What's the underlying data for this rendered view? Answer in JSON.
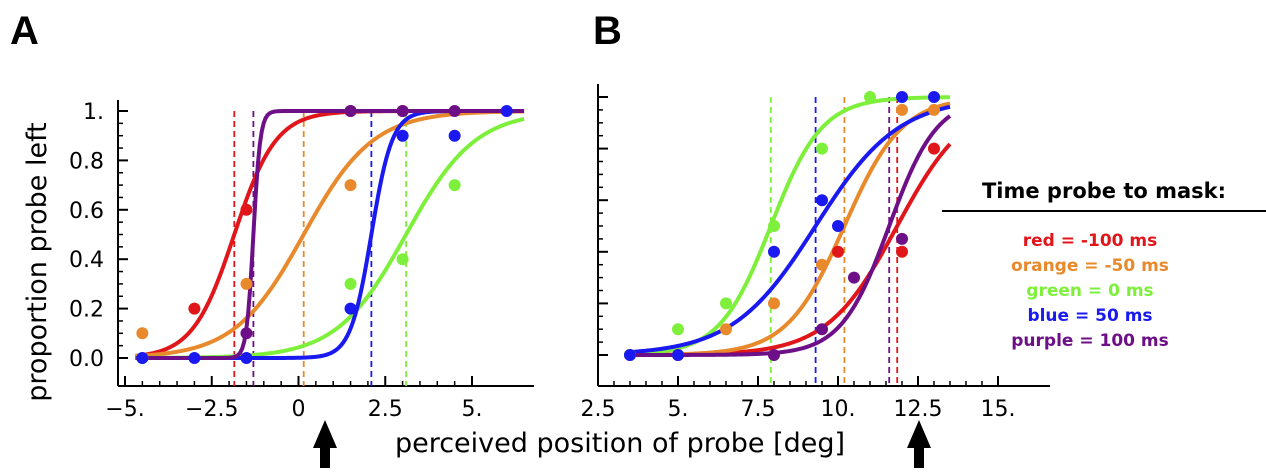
{
  "x_axis_label": "perceived position of probe [deg]",
  "legend": {
    "title": "Time probe to mask:",
    "entries": [
      {
        "text": "red = -100 ms",
        "color": "#e0161a"
      },
      {
        "text": "orange = -50 ms",
        "color": "#e8892b"
      },
      {
        "text": "green = 0 ms",
        "color": "#7ef03c"
      },
      {
        "text": "blue = 50 ms",
        "color": "#1a1af0"
      },
      {
        "text": "purple = 100 ms",
        "color": "#6d0f86"
      }
    ]
  },
  "chart_data": [
    {
      "panel": "A",
      "type": "scatter",
      "ylabel": "proportion probe left",
      "xlim": [
        -5.2,
        6.5
      ],
      "ylim": [
        -0.05,
        1.05
      ],
      "xticks": [
        -5.0,
        -2.5,
        0.0,
        2.5,
        5.0
      ],
      "xtick_labels": [
        "−5.",
        "−2.5",
        "0",
        "2.5",
        "5."
      ],
      "yticks": [
        0.0,
        0.2,
        0.4,
        0.6,
        0.8,
        1.0
      ],
      "ytick_labels": [
        "0.0",
        "0.2",
        "0.4",
        "0.6",
        "0.8",
        "1."
      ],
      "series": [
        {
          "name": "red = -100 ms",
          "color": "#e0161a",
          "points": [
            [
              -3.0,
              0.2
            ],
            [
              -1.5,
              0.6
            ],
            [
              1.5,
              1.0
            ],
            [
              3.0,
              1.0
            ]
          ],
          "fit": {
            "mu": -1.85,
            "s": 0.6,
            "lo": 0.0,
            "hi": 1.0,
            "x_from": -4.7,
            "x_to": 6.5
          },
          "threshold": -1.85
        },
        {
          "name": "orange = -50 ms",
          "color": "#e8892b",
          "points": [
            [
              -4.5,
              0.1
            ],
            [
              -1.5,
              0.3
            ],
            [
              1.5,
              0.7
            ],
            [
              3.0,
              0.9
            ]
          ],
          "fit": {
            "mu": 0.15,
            "s": 1.0,
            "lo": 0.0,
            "hi": 1.0,
            "x_from": -4.7,
            "x_to": 6.5
          },
          "threshold": 0.15
        },
        {
          "name": "green = 0 ms",
          "color": "#7ef03c",
          "points": [
            [
              -4.5,
              0.0
            ],
            [
              1.5,
              0.3
            ],
            [
              3.0,
              0.4
            ],
            [
              4.5,
              0.7
            ]
          ],
          "fit": {
            "mu": 3.1,
            "s": 1.0,
            "lo": 0.0,
            "hi": 1.0,
            "x_from": -4.7,
            "x_to": 6.5
          },
          "threshold": 3.1
        },
        {
          "name": "blue = 50 ms",
          "color": "#1a1af0",
          "points": [
            [
              -4.5,
              0.0
            ],
            [
              -3.0,
              0.0
            ],
            [
              -1.5,
              0.0
            ],
            [
              1.5,
              0.2
            ],
            [
              3.0,
              0.9
            ],
            [
              4.5,
              0.9
            ],
            [
              6.0,
              1.0
            ]
          ],
          "fit": {
            "mu": 2.1,
            "s": 0.3,
            "lo": 0.0,
            "hi": 1.0,
            "x_from": -4.7,
            "x_to": 6.5
          },
          "threshold": 2.1
        },
        {
          "name": "purple = 100 ms",
          "color": "#6d0f86",
          "points": [
            [
              -1.5,
              0.1
            ],
            [
              1.5,
              1.0
            ],
            [
              3.0,
              1.0
            ],
            [
              4.5,
              1.0
            ]
          ],
          "fit": {
            "mu": -1.3,
            "s": 0.1,
            "lo": 0.0,
            "hi": 1.0,
            "x_from": -4.7,
            "x_to": 6.5
          },
          "threshold": -1.3
        }
      ]
    },
    {
      "panel": "B",
      "type": "scatter",
      "ylabel": "",
      "xlim": [
        2.5,
        17.5
      ],
      "ylim": [
        -0.05,
        1.05
      ],
      "xticks": [
        2.5,
        5.0,
        7.5,
        10.0,
        12.5,
        15.0
      ],
      "xtick_labels": [
        "2.5",
        "5.",
        "7.5",
        "10.",
        "12.5",
        "15."
      ],
      "yticks": [
        0.0,
        0.2,
        0.4,
        0.6,
        0.8,
        1.0
      ],
      "ytick_labels": [],
      "series": [
        {
          "name": "red = -100 ms",
          "color": "#e0161a",
          "points": [
            [
              3.5,
              0.0
            ],
            [
              5.0,
              0.0
            ],
            [
              10.0,
              0.4
            ],
            [
              12.0,
              0.4
            ],
            [
              13.0,
              0.8
            ]
          ],
          "fit": {
            "mu": 11.85,
            "s": 1.1,
            "lo": 0.0,
            "hi": 1.0,
            "x_from": 3.5,
            "x_to": 13.5
          },
          "threshold": 11.85
        },
        {
          "name": "orange = -50 ms",
          "color": "#e8892b",
          "points": [
            [
              3.5,
              0.0
            ],
            [
              5.0,
              0.0
            ],
            [
              6.5,
              0.1
            ],
            [
              8.0,
              0.2
            ],
            [
              9.5,
              0.35
            ],
            [
              12.0,
              0.95
            ],
            [
              13.0,
              0.95
            ]
          ],
          "fit": {
            "mu": 10.2,
            "s": 0.9,
            "lo": 0.0,
            "hi": 1.0,
            "x_from": 3.5,
            "x_to": 13.5
          },
          "threshold": 10.2
        },
        {
          "name": "green = 0 ms",
          "color": "#7ef03c",
          "points": [
            [
              3.5,
              0.0
            ],
            [
              5.0,
              0.1
            ],
            [
              6.5,
              0.2
            ],
            [
              8.0,
              0.5
            ],
            [
              9.5,
              0.8
            ],
            [
              11.0,
              1.0
            ]
          ],
          "fit": {
            "mu": 7.9,
            "s": 0.8,
            "lo": 0.0,
            "hi": 1.0,
            "x_from": 3.5,
            "x_to": 13.5
          },
          "threshold": 7.9
        },
        {
          "name": "blue = 50 ms",
          "color": "#1a1af0",
          "points": [
            [
              3.5,
              0.0
            ],
            [
              5.0,
              0.0
            ],
            [
              8.0,
              0.4
            ],
            [
              9.5,
              0.6
            ],
            [
              10.0,
              0.5
            ],
            [
              12.0,
              1.0
            ],
            [
              13.0,
              1.0
            ]
          ],
          "fit": {
            "mu": 9.3,
            "s": 1.3,
            "lo": 0.0,
            "hi": 1.0,
            "x_from": 3.5,
            "x_to": 13.5
          },
          "threshold": 9.3
        },
        {
          "name": "purple = 100 ms",
          "color": "#6d0f86",
          "points": [
            [
              8.0,
              0.0
            ],
            [
              9.5,
              0.1
            ],
            [
              10.5,
              0.3
            ],
            [
              12.0,
              0.45
            ]
          ],
          "fit": {
            "mu": 11.6,
            "s": 0.75,
            "lo": 0.0,
            "hi": 1.0,
            "x_from": 3.5,
            "x_to": 13.5
          },
          "threshold": 11.6
        }
      ]
    }
  ]
}
